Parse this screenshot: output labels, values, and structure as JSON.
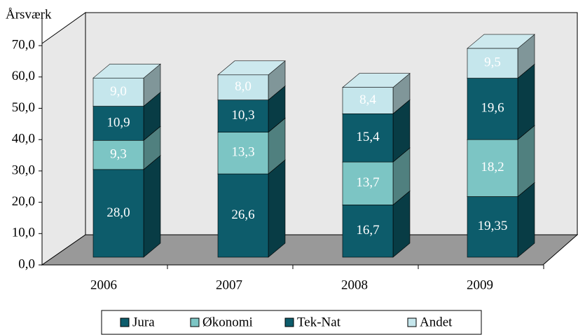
{
  "chart_data": {
    "type": "bar3d_stacked",
    "y_label": "Årsværk",
    "categories": [
      "2006",
      "2007",
      "2008",
      "2009"
    ],
    "series": [
      {
        "name": "Jura",
        "color": "#0d5c6b",
        "values": [
          28.0,
          26.6,
          16.7,
          19.35
        ],
        "value_labels": [
          "28,0",
          "26,6",
          "16,7",
          "19,35"
        ]
      },
      {
        "name": "Økonomi",
        "color": "#7cc5c4",
        "values": [
          9.3,
          13.3,
          13.7,
          18.2
        ],
        "value_labels": [
          "9,3",
          "13,3",
          "13,7",
          "18,2"
        ]
      },
      {
        "name": "Tek-Nat",
        "color": "#0d5c6b",
        "values": [
          10.9,
          10.3,
          15.4,
          19.6
        ],
        "value_labels": [
          "10,9",
          "10,3",
          "15,4",
          "19,6"
        ]
      },
      {
        "name": "Andet",
        "color": "#c5e6ec",
        "values": [
          9.0,
          8.0,
          8.4,
          9.5
        ],
        "value_labels": [
          "9,0",
          "8,0",
          "8,4",
          "9,5"
        ]
      }
    ],
    "ylim": [
      0,
      80
    ],
    "yticks": [
      {
        "value": 0,
        "label": "0,0"
      },
      {
        "value": 10,
        "label": "10,0"
      },
      {
        "value": 20,
        "label": "20,0"
      },
      {
        "value": 30,
        "label": "30,0"
      },
      {
        "value": 40,
        "label": "40,0"
      },
      {
        "value": 50,
        "label": "50,0"
      },
      {
        "value": 60,
        "label": "60,0"
      },
      {
        "value": 70,
        "label": "70,0"
      }
    ],
    "legend": "bottom"
  }
}
